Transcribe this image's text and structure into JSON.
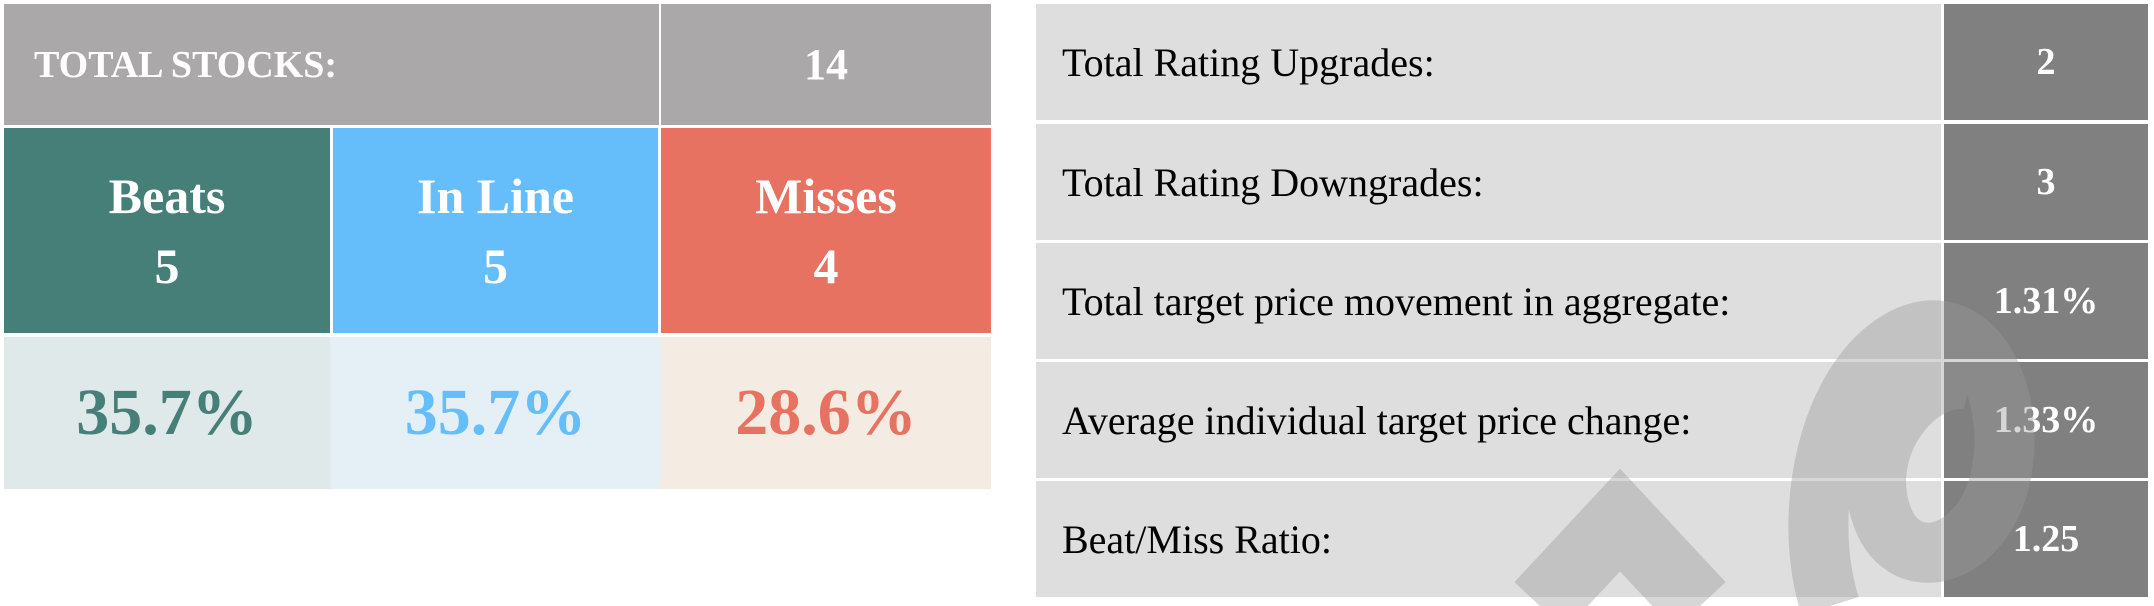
{
  "summary": {
    "total_label": "TOTAL STOCKS:",
    "total_value": "14",
    "categories": [
      {
        "label": "Beats",
        "count": "5",
        "percent": "35.7%",
        "color": "#467e78",
        "tint": "#dfe9e9"
      },
      {
        "label": "In Line",
        "count": "5",
        "percent": "35.7%",
        "color": "#65bef9",
        "tint": "#e4eff6"
      },
      {
        "label": "Misses",
        "count": "4",
        "percent": "28.6%",
        "color": "#e87261",
        "tint": "#f4ece2"
      }
    ]
  },
  "stats": [
    {
      "label": "Total Rating Upgrades:",
      "value": "2"
    },
    {
      "label": "Total Rating Downgrades:",
      "value": "3"
    },
    {
      "label": "Total target price movement in aggregate:",
      "value": "1.31%"
    },
    {
      "label": "Average individual target price change:",
      "value": "1.33%"
    },
    {
      "label": "Beat/Miss Ratio:",
      "value": "1.25"
    }
  ]
}
